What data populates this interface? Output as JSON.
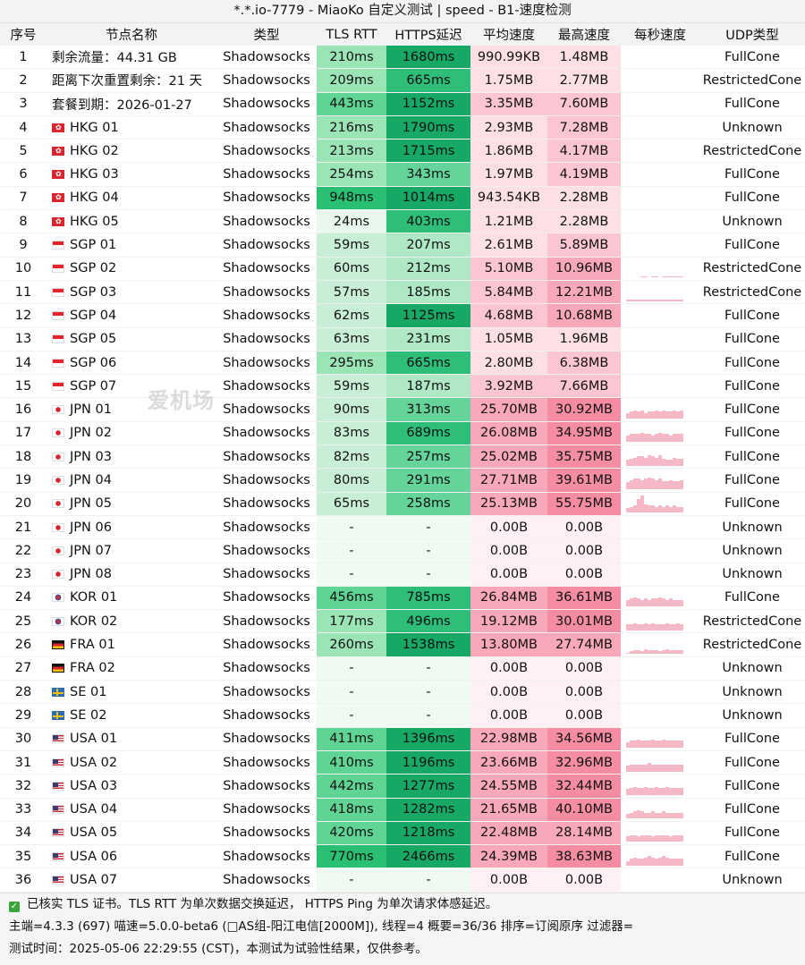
{
  "window_title": "*.*.io-7779 - MiaoKo 自定义测试 | speed - B1-速度检测",
  "headers": [
    "序号",
    "节点名称",
    "类型",
    "TLS RTT",
    "HTTPS延迟",
    "平均速度",
    "最高速度",
    "每秒速度",
    "UDP类型"
  ],
  "watermark": "爱机场",
  "rows": [
    {
      "no": "1",
      "flag": "",
      "name": "剩余流量：44.31 GB",
      "type": "Shadowsocks",
      "tls": "210ms",
      "https": "1680ms",
      "avg": "990.99KB",
      "max": "1.48MB",
      "udp": "FullCone",
      "spark": [
        0
      ]
    },
    {
      "no": "2",
      "flag": "",
      "name": "距离下次重置剩余：21 天",
      "type": "Shadowsocks",
      "tls": "209ms",
      "https": "665ms",
      "avg": "1.75MB",
      "max": "2.77MB",
      "udp": "RestrictedCone",
      "spark": [
        0
      ]
    },
    {
      "no": "3",
      "flag": "",
      "name": "套餐到期：2026-01-27",
      "type": "Shadowsocks",
      "tls": "443ms",
      "https": "1152ms",
      "avg": "3.35MB",
      "max": "7.60MB",
      "udp": "FullCone",
      "spark": [
        0
      ]
    },
    {
      "no": "4",
      "flag": "hk",
      "name": "HKG 01",
      "type": "Shadowsocks",
      "tls": "216ms",
      "https": "1790ms",
      "avg": "2.93MB",
      "max": "7.28MB",
      "udp": "Unknown",
      "spark": [
        0
      ]
    },
    {
      "no": "5",
      "flag": "hk",
      "name": "HKG 02",
      "type": "Shadowsocks",
      "tls": "213ms",
      "https": "1715ms",
      "avg": "1.86MB",
      "max": "4.17MB",
      "udp": "RestrictedCone",
      "spark": [
        0
      ]
    },
    {
      "no": "6",
      "flag": "hk",
      "name": "HKG 03",
      "type": "Shadowsocks",
      "tls": "254ms",
      "https": "343ms",
      "avg": "1.97MB",
      "max": "4.19MB",
      "udp": "FullCone",
      "spark": [
        0
      ]
    },
    {
      "no": "7",
      "flag": "hk",
      "name": "HKG 04",
      "type": "Shadowsocks",
      "tls": "948ms",
      "https": "1014ms",
      "avg": "943.54KB",
      "max": "2.28MB",
      "udp": "FullCone",
      "spark": [
        0
      ]
    },
    {
      "no": "8",
      "flag": "hk",
      "name": "HKG 05",
      "type": "Shadowsocks",
      "tls": "24ms",
      "https": "403ms",
      "avg": "1.21MB",
      "max": "2.28MB",
      "udp": "Unknown",
      "spark": [
        0
      ]
    },
    {
      "no": "9",
      "flag": "sg",
      "name": "SGP 01",
      "type": "Shadowsocks",
      "tls": "59ms",
      "https": "207ms",
      "avg": "2.61MB",
      "max": "5.89MB",
      "udp": "FullCone",
      "spark": [
        0
      ]
    },
    {
      "no": "10",
      "flag": "sg",
      "name": "SGP 02",
      "type": "Shadowsocks",
      "tls": "60ms",
      "https": "212ms",
      "avg": "5.10MB",
      "max": "10.96MB",
      "udp": "RestrictedCone",
      "spark": [
        0,
        0,
        0,
        0,
        1,
        1,
        0,
        1,
        1,
        0,
        1,
        1,
        1,
        1,
        1,
        1
      ]
    },
    {
      "no": "11",
      "flag": "sg",
      "name": "SGP 03",
      "type": "Shadowsocks",
      "tls": "57ms",
      "https": "185ms",
      "avg": "5.84MB",
      "max": "12.21MB",
      "udp": "RestrictedCone",
      "spark": [
        1,
        1,
        1,
        1,
        1,
        1,
        1,
        1,
        1,
        1,
        1,
        1,
        1,
        1,
        1,
        1
      ]
    },
    {
      "no": "12",
      "flag": "sg",
      "name": "SGP 04",
      "type": "Shadowsocks",
      "tls": "62ms",
      "https": "1125ms",
      "avg": "4.68MB",
      "max": "10.68MB",
      "udp": "FullCone",
      "spark": [
        0,
        0,
        0,
        0,
        0,
        0,
        0,
        0,
        0,
        0,
        0,
        0,
        0,
        0,
        0,
        0
      ]
    },
    {
      "no": "13",
      "flag": "sg",
      "name": "SGP 05",
      "type": "Shadowsocks",
      "tls": "63ms",
      "https": "231ms",
      "avg": "1.05MB",
      "max": "1.96MB",
      "udp": "FullCone",
      "spark": [
        0
      ]
    },
    {
      "no": "14",
      "flag": "sg",
      "name": "SGP 06",
      "type": "Shadowsocks",
      "tls": "295ms",
      "https": "665ms",
      "avg": "2.80MB",
      "max": "6.38MB",
      "udp": "FullCone",
      "spark": [
        0
      ]
    },
    {
      "no": "15",
      "flag": "sg",
      "name": "SGP 07",
      "type": "Shadowsocks",
      "tls": "59ms",
      "https": "187ms",
      "avg": "3.92MB",
      "max": "7.66MB",
      "udp": "FullCone",
      "spark": [
        0
      ]
    },
    {
      "no": "16",
      "flag": "jp",
      "name": "JPN 01",
      "type": "Shadowsocks",
      "tls": "90ms",
      "https": "313ms",
      "avg": "25.70MB",
      "max": "30.92MB",
      "udp": "FullCone",
      "spark": [
        5,
        6,
        7,
        6,
        7,
        5,
        6,
        6,
        7,
        6,
        7,
        6,
        6,
        7,
        6,
        7
      ]
    },
    {
      "no": "17",
      "flag": "jp",
      "name": "JPN 02",
      "type": "Shadowsocks",
      "tls": "83ms",
      "https": "689ms",
      "avg": "26.08MB",
      "max": "34.95MB",
      "udp": "FullCone",
      "spark": [
        6,
        7,
        7,
        7,
        8,
        7,
        7,
        6,
        7,
        8,
        7,
        7,
        6,
        7,
        7,
        7
      ]
    },
    {
      "no": "18",
      "flag": "jp",
      "name": "JPN 03",
      "type": "Shadowsocks",
      "tls": "82ms",
      "https": "257ms",
      "avg": "25.02MB",
      "max": "35.75MB",
      "udp": "FullCone",
      "spark": [
        5,
        6,
        7,
        8,
        8,
        7,
        9,
        8,
        7,
        9,
        6,
        5,
        5,
        7,
        6,
        6
      ]
    },
    {
      "no": "19",
      "flag": "jp",
      "name": "JPN 04",
      "type": "Shadowsocks",
      "tls": "80ms",
      "https": "291ms",
      "avg": "27.71MB",
      "max": "39.61MB",
      "udp": "FullCone",
      "spark": [
        6,
        8,
        9,
        9,
        8,
        9,
        10,
        9,
        8,
        9,
        7,
        7,
        8,
        7,
        7,
        8
      ]
    },
    {
      "no": "20",
      "flag": "jp",
      "name": "JPN 05",
      "type": "Shadowsocks",
      "tls": "65ms",
      "https": "258ms",
      "avg": "25.13MB",
      "max": "55.75MB",
      "udp": "FullCone",
      "spark": [
        4,
        5,
        6,
        12,
        15,
        7,
        6,
        6,
        5,
        6,
        5,
        6,
        5,
        6,
        5,
        5
      ]
    },
    {
      "no": "21",
      "flag": "jp",
      "name": "JPN 06",
      "type": "Shadowsocks",
      "tls": "-",
      "https": "-",
      "avg": "0.00B",
      "max": "0.00B",
      "udp": "Unknown",
      "spark": [
        0
      ]
    },
    {
      "no": "22",
      "flag": "jp",
      "name": "JPN 07",
      "type": "Shadowsocks",
      "tls": "-",
      "https": "-",
      "avg": "0.00B",
      "max": "0.00B",
      "udp": "Unknown",
      "spark": [
        0
      ]
    },
    {
      "no": "23",
      "flag": "jp",
      "name": "JPN 08",
      "type": "Shadowsocks",
      "tls": "-",
      "https": "-",
      "avg": "0.00B",
      "max": "0.00B",
      "udp": "Unknown",
      "spark": [
        0
      ]
    },
    {
      "no": "24",
      "flag": "kr",
      "name": "KOR 01",
      "type": "Shadowsocks",
      "tls": "456ms",
      "https": "785ms",
      "avg": "26.84MB",
      "max": "36.61MB",
      "udp": "FullCone",
      "spark": [
        6,
        7,
        8,
        7,
        6,
        7,
        6,
        7,
        7,
        8,
        7,
        6,
        7,
        6,
        6,
        6
      ]
    },
    {
      "no": "25",
      "flag": "kr",
      "name": "KOR 02",
      "type": "Shadowsocks",
      "tls": "177ms",
      "https": "496ms",
      "avg": "19.12MB",
      "max": "30.01MB",
      "udp": "RestrictedCone",
      "spark": [
        5,
        5,
        6,
        5,
        5,
        6,
        5,
        6,
        5,
        5,
        5,
        6,
        5,
        5,
        6,
        5
      ]
    },
    {
      "no": "26",
      "flag": "de",
      "name": "FRA 01",
      "type": "Shadowsocks",
      "tls": "260ms",
      "https": "1538ms",
      "avg": "13.80MB",
      "max": "27.74MB",
      "udp": "RestrictedCone",
      "spark": [
        1,
        2,
        3,
        3,
        2,
        4,
        3,
        3,
        3,
        2,
        3,
        4,
        3,
        3,
        3,
        3
      ]
    },
    {
      "no": "27",
      "flag": "de",
      "name": "FRA 02",
      "type": "Shadowsocks",
      "tls": "-",
      "https": "-",
      "avg": "0.00B",
      "max": "0.00B",
      "udp": "Unknown",
      "spark": [
        0
      ]
    },
    {
      "no": "28",
      "flag": "se",
      "name": "SE 01",
      "type": "Shadowsocks",
      "tls": "-",
      "https": "-",
      "avg": "0.00B",
      "max": "0.00B",
      "udp": "Unknown",
      "spark": [
        0
      ]
    },
    {
      "no": "29",
      "flag": "se",
      "name": "SE 02",
      "type": "Shadowsocks",
      "tls": "-",
      "https": "-",
      "avg": "0.00B",
      "max": "0.00B",
      "udp": "Unknown",
      "spark": [
        0
      ]
    },
    {
      "no": "30",
      "flag": "us",
      "name": "USA 01",
      "type": "Shadowsocks",
      "tls": "411ms",
      "https": "1396ms",
      "avg": "22.98MB",
      "max": "34.56MB",
      "udp": "FullCone",
      "spark": [
        5,
        6,
        6,
        7,
        6,
        6,
        6,
        7,
        6,
        6,
        7,
        6,
        6,
        6,
        6,
        6
      ]
    },
    {
      "no": "31",
      "flag": "us",
      "name": "USA 02",
      "type": "Shadowsocks",
      "tls": "410ms",
      "https": "1196ms",
      "avg": "23.66MB",
      "max": "32.96MB",
      "udp": "FullCone",
      "spark": [
        5,
        6,
        6,
        6,
        6,
        6,
        7,
        6,
        6,
        6,
        6,
        6,
        6,
        6,
        6,
        6
      ]
    },
    {
      "no": "32",
      "flag": "us",
      "name": "USA 03",
      "type": "Shadowsocks",
      "tls": "442ms",
      "https": "1277ms",
      "avg": "24.55MB",
      "max": "32.44MB",
      "udp": "FullCone",
      "spark": [
        5,
        6,
        7,
        6,
        6,
        7,
        6,
        6,
        7,
        6,
        6,
        7,
        6,
        6,
        6,
        6
      ]
    },
    {
      "no": "33",
      "flag": "us",
      "name": "USA 04",
      "type": "Shadowsocks",
      "tls": "418ms",
      "https": "1282ms",
      "avg": "21.65MB",
      "max": "40.10MB",
      "udp": "FullCone",
      "spark": [
        4,
        5,
        6,
        7,
        6,
        5,
        5,
        6,
        5,
        5,
        6,
        5,
        5,
        5,
        5,
        5
      ]
    },
    {
      "no": "34",
      "flag": "us",
      "name": "USA 05",
      "type": "Shadowsocks",
      "tls": "420ms",
      "https": "1218ms",
      "avg": "22.48MB",
      "max": "28.14MB",
      "udp": "FullCone",
      "spark": [
        5,
        6,
        6,
        5,
        6,
        6,
        6,
        5,
        6,
        6,
        6,
        6,
        5,
        6,
        6,
        6
      ]
    },
    {
      "no": "35",
      "flag": "us",
      "name": "USA 06",
      "type": "Shadowsocks",
      "tls": "770ms",
      "https": "2466ms",
      "avg": "24.39MB",
      "max": "38.63MB",
      "udp": "FullCone",
      "spark": [
        4,
        6,
        7,
        6,
        6,
        7,
        8,
        7,
        6,
        7,
        8,
        7,
        6,
        6,
        6,
        6
      ]
    },
    {
      "no": "36",
      "flag": "us",
      "name": "USA 07",
      "type": "Shadowsocks",
      "tls": "-",
      "https": "-",
      "avg": "0.00B",
      "max": "0.00B",
      "udp": "Unknown",
      "spark": [
        0
      ]
    }
  ],
  "footer": {
    "line1": "已核实 TLS 证书。TLS RTT 为单次数据交换延迟， HTTPS Ping 为单次请求体感延迟。",
    "line2": "主端=4.3.3 (697) 喵速=5.0.0-beta6 (□AS组-阳江电信[2000M]), 线程=4 概要=36/36 排序=订阅原序 过滤器=",
    "line3": "测试时间：2025-05-06 22:29:55 (CST)，本测试为试验性结果，仅供参考。"
  },
  "colors": {
    "tls_scale": [
      "#e9f8ee",
      "#c8efd6",
      "#9be4b6",
      "#5fd494",
      "#2ac074"
    ],
    "https_scale": [
      "#e9f8ee",
      "#aee8c5",
      "#64d49a",
      "#2fbe79",
      "#16a864"
    ],
    "speed_scale": [
      "#fff0f3",
      "#fde0e6",
      "#fbc6d1",
      "#f8a8b9",
      "#f48ca2"
    ],
    "empty": "#eefaf2"
  }
}
